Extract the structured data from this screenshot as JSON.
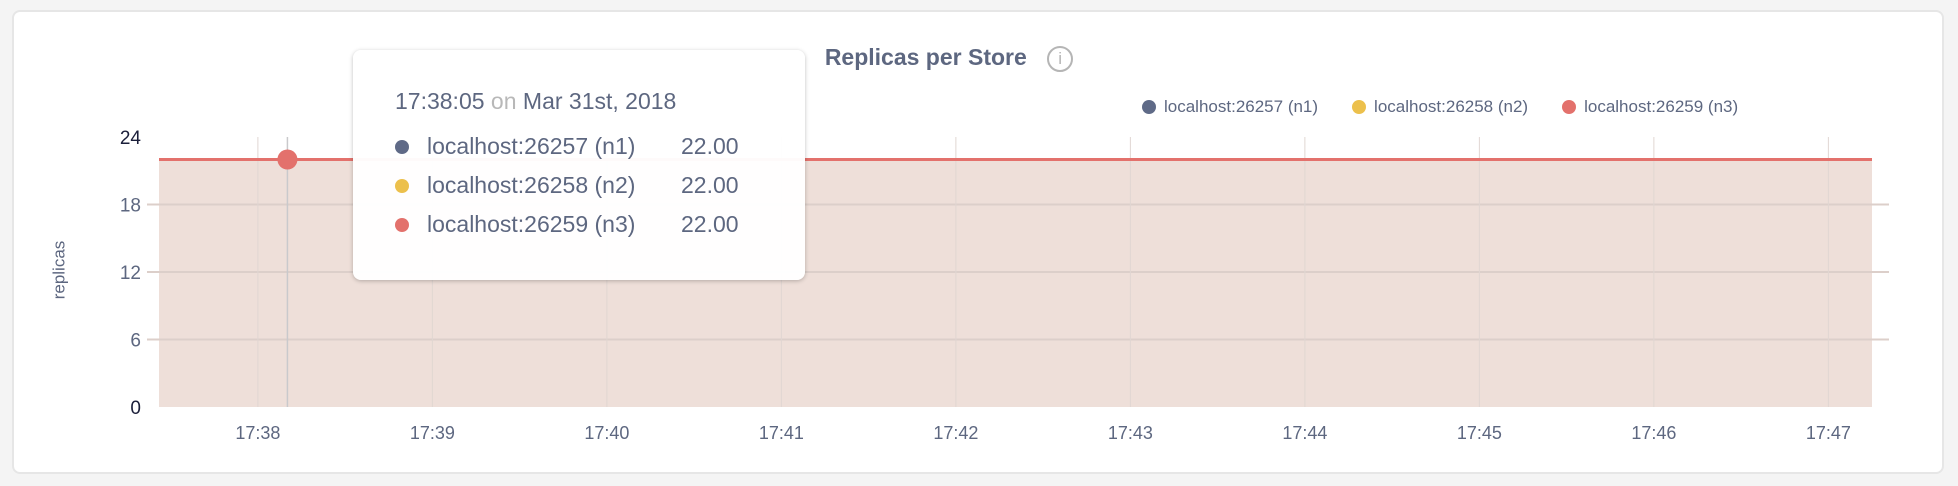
{
  "chart_data": {
    "type": "area",
    "title": "Replicas per Store",
    "title_icon": "info-icon",
    "ylabel": "replicas",
    "xlabel": "",
    "ylim": [
      0,
      24
    ],
    "yticks": [
      "0",
      "6",
      "12",
      "18",
      "24"
    ],
    "ytick_values": [
      0,
      6,
      12,
      18,
      24
    ],
    "xticks": [
      "17:38",
      "17:39",
      "17:40",
      "17:41",
      "17:42",
      "17:43",
      "17:44",
      "17:45",
      "17:46",
      "17:47"
    ],
    "xlim": [
      "17:37:26",
      "17:47:15"
    ],
    "grid": true,
    "legend_position": "top-right",
    "x": [
      "17:37:26",
      "17:38:00",
      "17:39:00",
      "17:40:00",
      "17:41:00",
      "17:42:00",
      "17:43:00",
      "17:44:00",
      "17:45:00",
      "17:46:00",
      "17:47:00",
      "17:47:15"
    ],
    "series": [
      {
        "name": "localhost:26257 (n1)",
        "color": "#5f6a87",
        "values": [
          22,
          22,
          22,
          22,
          22,
          22,
          22,
          22,
          22,
          22,
          22,
          22
        ]
      },
      {
        "name": "localhost:26258 (n2)",
        "color": "#ecc04c",
        "values": [
          22,
          22,
          22,
          22,
          22,
          22,
          22,
          22,
          22,
          22,
          22,
          22
        ]
      },
      {
        "name": "localhost:26259 (n3)",
        "color": "#e3716c",
        "values": [
          22,
          22,
          22,
          22,
          22,
          22,
          22,
          22,
          22,
          22,
          22,
          22
        ]
      }
    ],
    "area_fill_color": "#eedfd9",
    "hover_x": "17:38:05"
  },
  "tooltip": {
    "time": "17:38:05",
    "on": "on",
    "date": "Mar 31st, 2018",
    "rows": [
      {
        "name": "localhost:26257 (n1)",
        "value": "22.00"
      },
      {
        "name": "localhost:26258 (n2)",
        "value": "22.00"
      },
      {
        "name": "localhost:26259 (n3)",
        "value": "22.00"
      }
    ]
  }
}
